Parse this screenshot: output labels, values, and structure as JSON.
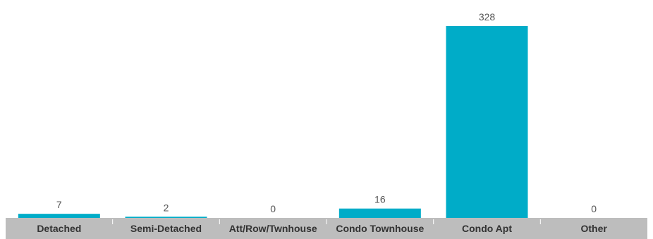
{
  "chart_data": {
    "type": "bar",
    "categories": [
      "Detached",
      "Semi-Detached",
      "Att/Row/Twnhouse",
      "Condo Townhouse",
      "Condo Apt",
      "Other"
    ],
    "values": [
      7,
      2,
      0,
      16,
      328,
      0
    ],
    "value_labels": [
      "7",
      "2",
      "0",
      "16",
      "328",
      "0"
    ],
    "title": "",
    "xlabel": "",
    "ylabel": "",
    "ylim": [
      0,
      328
    ],
    "grid": false,
    "legend": "none",
    "bar_color": "#00acc8",
    "axis_band_color": "#bdbdbd"
  }
}
